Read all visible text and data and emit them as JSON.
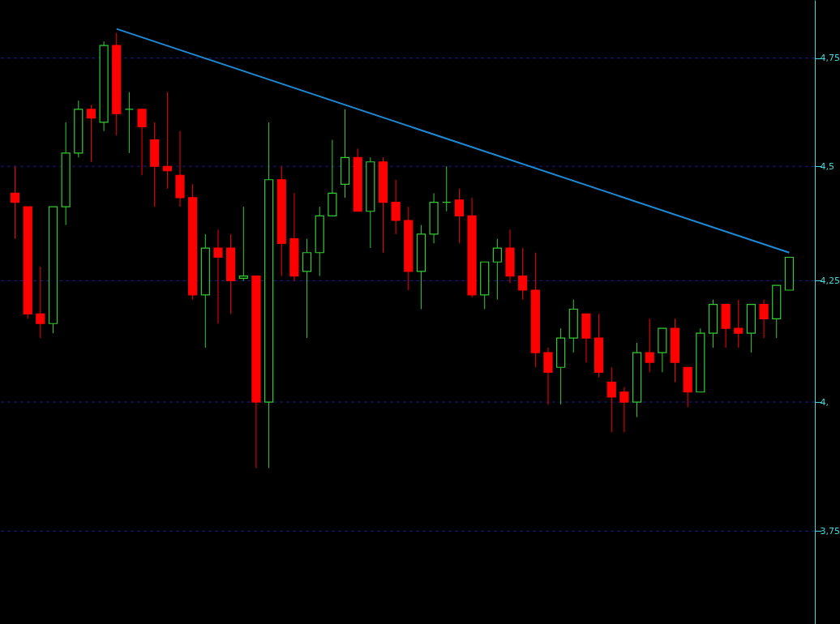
{
  "chart_data": {
    "type": "candlestick",
    "categories": [
      null,
      null,
      null,
      null,
      null,
      null,
      null,
      null,
      null,
      null,
      null,
      null,
      null,
      null,
      null,
      null,
      null,
      null,
      null,
      null,
      null,
      null,
      null,
      null,
      null,
      null,
      null,
      null,
      null,
      null,
      null,
      null,
      null,
      null,
      null,
      null,
      null,
      null,
      null,
      null,
      null,
      null,
      null,
      null,
      null,
      null,
      null,
      null,
      null,
      null,
      null,
      null,
      null,
      null,
      null,
      null,
      null,
      null,
      null,
      null,
      null,
      null
    ],
    "ohlc": [
      [
        4.44,
        4.5,
        4.34,
        4.42
      ],
      [
        4.41,
        4.41,
        4.17,
        4.18
      ],
      [
        4.18,
        4.28,
        4.13,
        4.16
      ],
      [
        4.16,
        4.41,
        4.14,
        4.41
      ],
      [
        4.41,
        4.6,
        4.37,
        4.53
      ],
      [
        4.53,
        4.65,
        4.52,
        4.63
      ],
      [
        4.63,
        4.64,
        4.51,
        4.61
      ],
      [
        4.6,
        4.79,
        4.58,
        4.78
      ],
      [
        4.78,
        4.81,
        4.57,
        4.62
      ],
      [
        4.63,
        4.67,
        4.53,
        4.63
      ],
      [
        4.63,
        4.63,
        4.48,
        4.59
      ],
      [
        4.56,
        4.6,
        4.41,
        4.5
      ],
      [
        4.5,
        4.67,
        4.45,
        4.49
      ],
      [
        4.48,
        4.58,
        4.41,
        4.43
      ],
      [
        4.43,
        4.46,
        4.21,
        4.22
      ],
      [
        4.22,
        4.35,
        4.11,
        4.32
      ],
      [
        4.32,
        4.36,
        4.16,
        4.3
      ],
      [
        4.32,
        4.35,
        4.18,
        4.25
      ],
      [
        4.255,
        4.41,
        4.25,
        4.26
      ],
      [
        4.26,
        4.26,
        3.87,
        4.0
      ],
      [
        4.0,
        4.6,
        3.87,
        4.47
      ],
      [
        4.47,
        4.5,
        4.26,
        4.33
      ],
      [
        4.34,
        4.44,
        4.25,
        4.26
      ],
      [
        4.27,
        4.34,
        4.13,
        4.31
      ],
      [
        4.31,
        4.41,
        4.26,
        4.39
      ],
      [
        4.39,
        4.56,
        4.39,
        4.44
      ],
      [
        4.46,
        4.63,
        4.43,
        4.52
      ],
      [
        4.52,
        4.54,
        4.4,
        4.4
      ],
      [
        4.4,
        4.52,
        4.32,
        4.51
      ],
      [
        4.51,
        4.52,
        4.31,
        4.42
      ],
      [
        4.42,
        4.47,
        4.35,
        4.38
      ],
      [
        4.38,
        4.41,
        4.23,
        4.27
      ],
      [
        4.27,
        4.37,
        4.19,
        4.35
      ],
      [
        4.35,
        4.44,
        4.33,
        4.42
      ],
      [
        4.42,
        4.5,
        4.4,
        4.42
      ],
      [
        4.425,
        4.45,
        4.33,
        4.39
      ],
      [
        4.39,
        4.43,
        4.215,
        4.22
      ],
      [
        4.22,
        4.29,
        4.19,
        4.29
      ],
      [
        4.29,
        4.34,
        4.21,
        4.32
      ],
      [
        4.32,
        4.36,
        4.245,
        4.26
      ],
      [
        4.26,
        4.32,
        4.21,
        4.23
      ],
      [
        4.23,
        4.31,
        4.07,
        4.1
      ],
      [
        4.1,
        4.11,
        3.995,
        4.06
      ],
      [
        4.07,
        4.15,
        3.995,
        4.13
      ],
      [
        4.13,
        4.21,
        4.1,
        4.19
      ],
      [
        4.18,
        4.18,
        4.08,
        4.13
      ],
      [
        4.13,
        4.18,
        4.05,
        4.06
      ],
      [
        4.04,
        4.07,
        3.94,
        4.01
      ],
      [
        4.02,
        4.03,
        3.94,
        4.0
      ],
      [
        4.0,
        4.12,
        3.97,
        4.1
      ],
      [
        4.1,
        4.17,
        4.06,
        4.08
      ],
      [
        4.1,
        4.15,
        4.06,
        4.15
      ],
      [
        4.15,
        4.17,
        4.04,
        4.08
      ],
      [
        4.07,
        4.07,
        3.99,
        4.02
      ],
      [
        4.02,
        4.15,
        4.02,
        4.14
      ],
      [
        4.14,
        4.21,
        4.11,
        4.2
      ],
      [
        4.2,
        4.2,
        4.11,
        4.15
      ],
      [
        4.15,
        4.21,
        4.11,
        4.14
      ],
      [
        4.14,
        4.2,
        4.1,
        4.2
      ],
      [
        4.2,
        4.21,
        4.13,
        4.17
      ],
      [
        4.17,
        4.24,
        4.13,
        4.24
      ],
      [
        4.23,
        4.3,
        4.23,
        4.3
      ]
    ],
    "colors": [
      "#ff0000",
      "#ff0000",
      "#ff0000",
      "#33cc33",
      "#33cc33",
      "#33cc33",
      "#ff0000",
      "#33cc33",
      "#ff0000",
      "#33cc33",
      "#ff0000",
      "#ff0000",
      "#ff0000",
      "#ff0000",
      "#ff0000",
      "#33cc33",
      "#ff0000",
      "#ff0000",
      "#33cc33",
      "#ff0000",
      "#33cc33",
      "#ff0000",
      "#ff0000",
      "#33cc33",
      "#33cc33",
      "#33cc33",
      "#33cc33",
      "#ff0000",
      "#33cc33",
      "#ff0000",
      "#ff0000",
      "#ff0000",
      "#33cc33",
      "#33cc33",
      "#33cc33",
      "#ff0000",
      "#ff0000",
      "#33cc33",
      "#33cc33",
      "#ff0000",
      "#ff0000",
      "#ff0000",
      "#ff0000",
      "#33cc33",
      "#33cc33",
      "#ff0000",
      "#ff0000",
      "#ff0000",
      "#ff0000",
      "#33cc33",
      "#ff0000",
      "#33cc33",
      "#ff0000",
      "#ff0000",
      "#33cc33",
      "#33cc33",
      "#ff0000",
      "#ff0000",
      "#33cc33",
      "#ff0000",
      "#33cc33",
      "#33cc33"
    ],
    "series": [
      {
        "type": "line",
        "color": "#1e8ad6",
        "values": [
          null,
          null,
          null,
          null,
          null,
          null,
          null,
          null,
          4.82,
          null,
          null,
          null,
          null,
          null,
          null,
          null,
          null,
          null,
          null,
          null,
          null,
          null,
          null,
          null,
          null,
          null,
          null,
          null,
          null,
          null,
          null,
          null,
          null,
          null,
          null,
          null,
          null,
          null,
          null,
          null,
          null,
          null,
          null,
          null,
          null,
          null,
          null,
          null,
          null,
          null,
          null,
          null,
          null,
          null,
          null,
          null,
          null,
          null,
          null,
          null,
          null,
          4.31
        ]
      }
    ],
    "log": true,
    "ylim": [
      3.58,
      4.89
    ],
    "yticks": [
      {
        "value": 4.75,
        "label": "4,75"
      },
      {
        "value": 4.5,
        "label": "4,5"
      },
      {
        "value": 4.25,
        "label": "4,25"
      },
      {
        "value": 4,
        "label": "4,"
      },
      {
        "value": 3.75,
        "label": "3,75"
      }
    ],
    "grid": "y",
    "tick_labels": "y"
  }
}
